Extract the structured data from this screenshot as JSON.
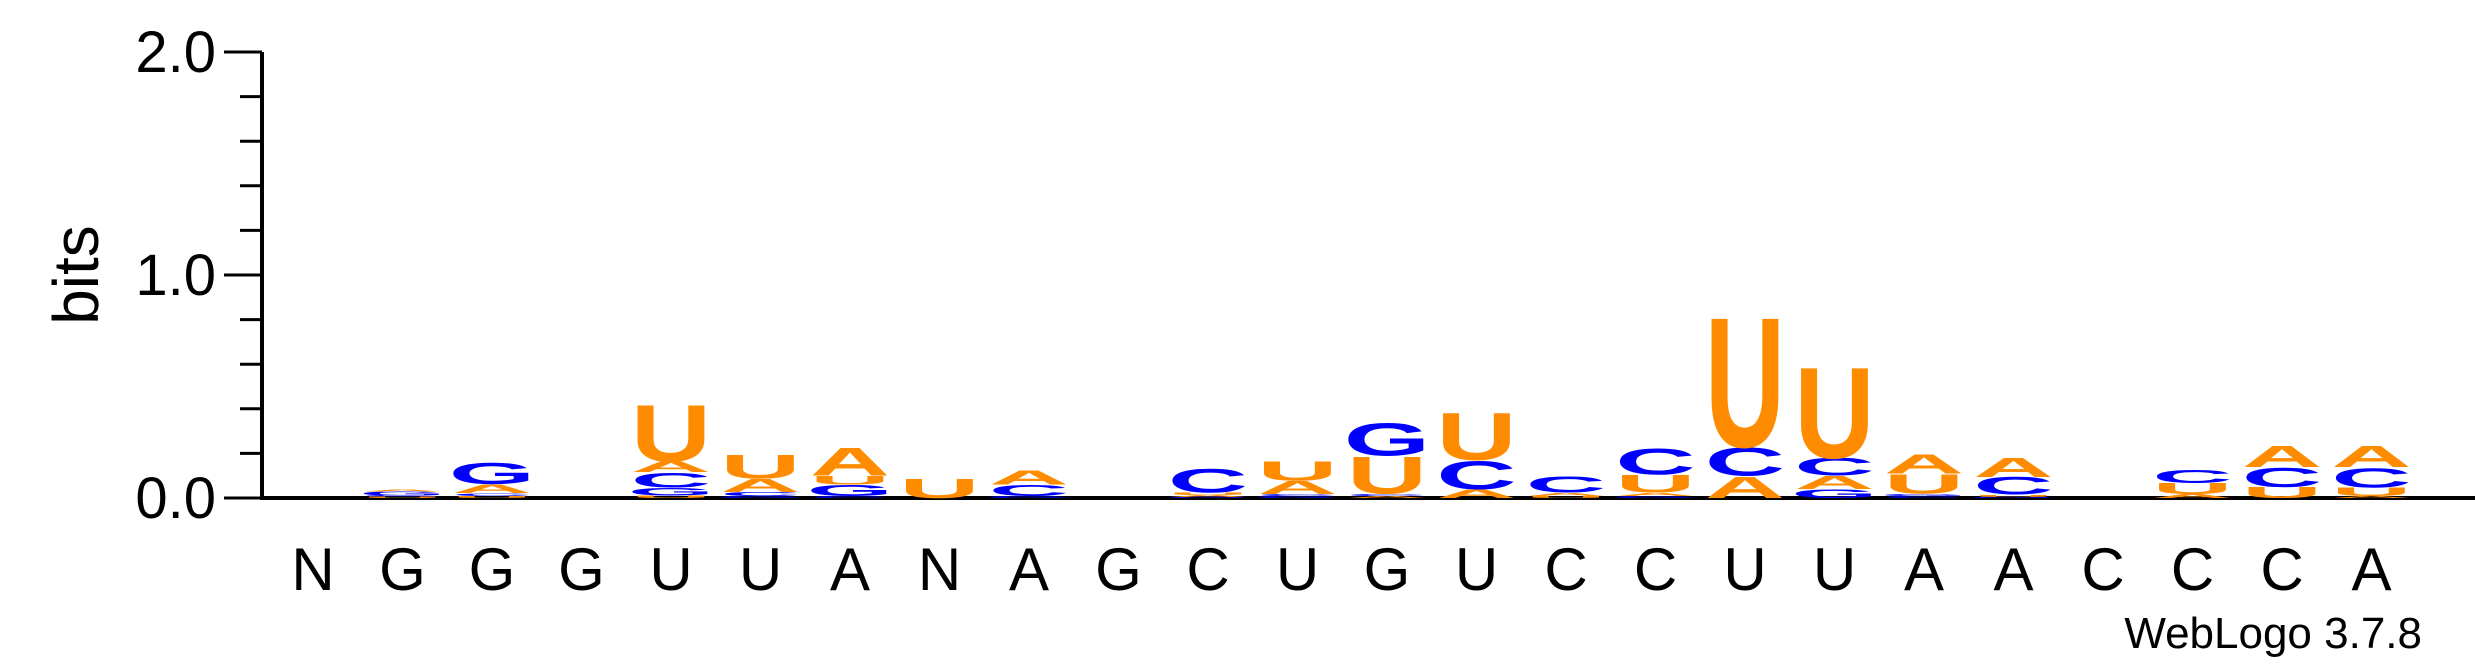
{
  "chart_data": {
    "type": "sequence-logo",
    "ylabel": "bits",
    "ylim": [
      0,
      2.0
    ],
    "y_ticks": [
      "0.0",
      "1.0",
      "2.0"
    ],
    "y_tick_values": [
      0,
      1.0,
      2.0
    ],
    "x_labels": [
      "N",
      "G",
      "G",
      "G",
      "U",
      "U",
      "A",
      "N",
      "A",
      "G",
      "C",
      "U",
      "G",
      "U",
      "C",
      "C",
      "U",
      "U",
      "A",
      "A",
      "C",
      "C",
      "C",
      "A"
    ],
    "colors": {
      "A": "#ff8c00",
      "U": "#ff8c00",
      "G": "#0000ff",
      "C": "#0000ff"
    },
    "stacks": [
      [],
      [
        [
          "U",
          0.006
        ],
        [
          "C",
          0.005
        ],
        [
          "G",
          0.018
        ],
        [
          "A",
          0.008
        ]
      ],
      [
        [
          "U",
          0.01
        ],
        [
          "C",
          0.012
        ],
        [
          "A",
          0.04
        ],
        [
          "G",
          0.1
        ]
      ],
      [],
      [
        [
          "U",
          0.012
        ],
        [
          "G",
          0.035
        ],
        [
          "C",
          0.07
        ],
        [
          "A",
          0.05
        ],
        [
          "U",
          0.26
        ]
      ],
      [
        [
          "G",
          0.01
        ],
        [
          "C",
          0.018
        ],
        [
          "A",
          0.06
        ],
        [
          "U",
          0.11
        ]
      ],
      [
        [
          "C",
          0.01
        ],
        [
          "G",
          0.05
        ],
        [
          "U",
          0.04
        ],
        [
          "A",
          0.13
        ]
      ],
      [
        [
          "U",
          0.09
        ]
      ],
      [
        [
          "G",
          0.01
        ],
        [
          "C",
          0.05
        ],
        [
          "A",
          0.065
        ]
      ],
      [],
      [
        [
          "G",
          0.005
        ],
        [
          "A",
          0.008
        ],
        [
          "U",
          0.012
        ],
        [
          "C",
          0.11
        ]
      ],
      [
        [
          "G",
          0.008
        ],
        [
          "C",
          0.01
        ],
        [
          "A",
          0.06
        ],
        [
          "U",
          0.09
        ]
      ],
      [
        [
          "A",
          0.01
        ],
        [
          "C",
          0.01
        ],
        [
          "U",
          0.17
        ],
        [
          "G",
          0.15
        ]
      ],
      [
        [
          "A",
          0.04
        ],
        [
          "C",
          0.13
        ],
        [
          "U",
          0.22
        ]
      ],
      [
        [
          "U",
          0.01
        ],
        [
          "A",
          0.015
        ],
        [
          "C",
          0.075
        ]
      ],
      [
        [
          "G",
          0.01
        ],
        [
          "A",
          0.015
        ],
        [
          "U",
          0.08
        ],
        [
          "C",
          0.12
        ]
      ],
      [
        [
          "A",
          0.1
        ],
        [
          "C",
          0.13
        ],
        [
          "U",
          0.6
        ]
      ],
      [
        [
          "G",
          0.04
        ],
        [
          "A",
          0.06
        ],
        [
          "C",
          0.08
        ],
        [
          "U",
          0.42
        ]
      ],
      [
        [
          "C",
          0.01
        ],
        [
          "G",
          0.01
        ],
        [
          "U",
          0.09
        ],
        [
          "A",
          0.09
        ]
      ],
      [
        [
          "G",
          0.005
        ],
        [
          "U",
          0.01
        ],
        [
          "C",
          0.08
        ],
        [
          "A",
          0.09
        ]
      ],
      [],
      [
        [
          "A",
          0.018
        ],
        [
          "U",
          0.05
        ],
        [
          "C",
          0.06
        ]
      ],
      [
        [
          "U",
          0.05
        ],
        [
          "C",
          0.09
        ],
        [
          "A",
          0.1
        ]
      ],
      [
        [
          "A",
          0.008
        ],
        [
          "U",
          0.04
        ],
        [
          "C",
          0.09
        ],
        [
          "A",
          0.1
        ]
      ]
    ]
  },
  "credit": "WebLogo 3.7.8"
}
